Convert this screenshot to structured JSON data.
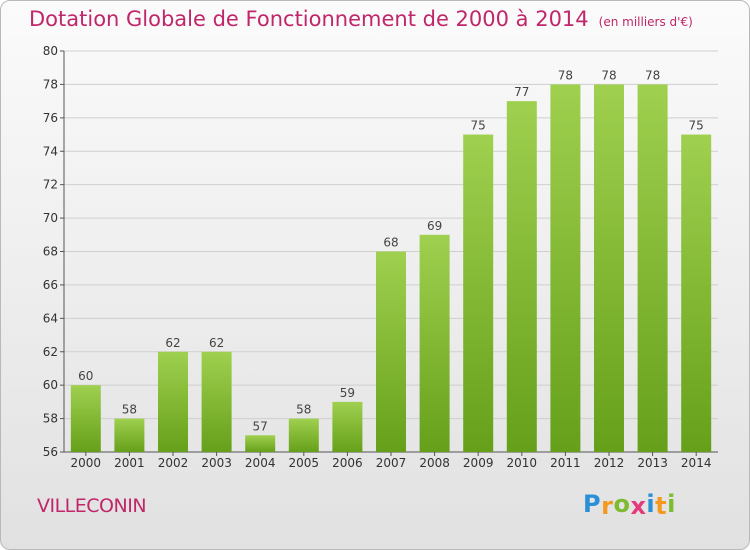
{
  "title": "Dotation Globale de Fonctionnement de 2000 à 2014",
  "subtitle": "(en milliers d'€)",
  "commune": "VILLECONIN",
  "logo": {
    "letters": [
      "P",
      "r",
      "o",
      "x",
      "i",
      "t",
      "i"
    ],
    "colors": [
      "#2a8fd6",
      "#f39a1e",
      "#7dbb2f",
      "#e5397d",
      "#2a8fd6",
      "#f39a1e",
      "#7dbb2f"
    ]
  },
  "colors": {
    "bar_top": "#9fd04f",
    "bar_bottom": "#66a01a",
    "title": "#c0266a",
    "grid": "#cfcfcf"
  },
  "chart_data": {
    "type": "bar",
    "title": "Dotation Globale de Fonctionnement de 2000 à 2014",
    "subtitle": "(en milliers d'€)",
    "categories": [
      "2000",
      "2001",
      "2002",
      "2003",
      "2004",
      "2005",
      "2006",
      "2007",
      "2008",
      "2009",
      "2010",
      "2011",
      "2012",
      "2013",
      "2014"
    ],
    "values": [
      60,
      58,
      62,
      62,
      57,
      58,
      59,
      68,
      69,
      75,
      77,
      78,
      78,
      78,
      75
    ],
    "ylim": [
      56,
      80
    ],
    "yticks": [
      56,
      58,
      60,
      62,
      64,
      66,
      68,
      70,
      72,
      74,
      76,
      78,
      80
    ],
    "grid": true,
    "data_labels": true
  }
}
